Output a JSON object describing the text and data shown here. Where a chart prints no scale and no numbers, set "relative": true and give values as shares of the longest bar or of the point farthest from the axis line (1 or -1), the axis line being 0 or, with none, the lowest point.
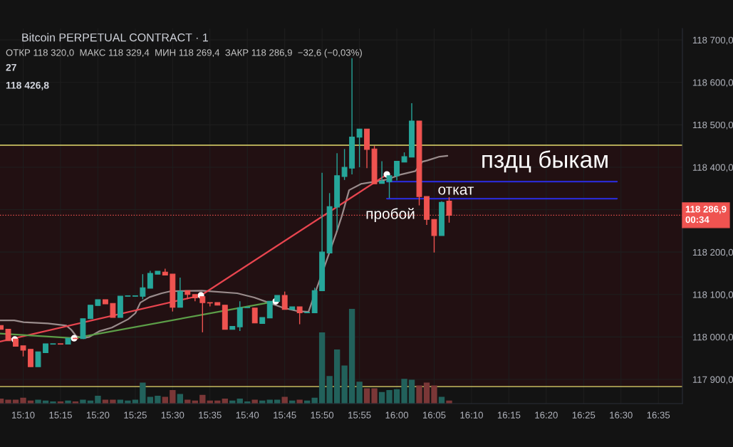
{
  "chart_data": [
    {
      "type": "candlestick",
      "title": "Bitcoin PERPETUAL CONTRACT · 1",
      "subtitle": "ОТКР 118 320,0  МАКС 118 329,4  МИН 118 269,4  ЗАКР 118 286,9  −32,6 (−0,03%)",
      "annotations": [
        "27",
        "118 426,8",
        "пздц быкам",
        "откат",
        "пробой"
      ],
      "x": [
        15.1167,
        15.1333,
        15.15,
        15.1667,
        15.1833,
        15.2,
        15.2167,
        15.2333,
        15.25,
        15.2667,
        15.2833,
        15.3,
        15.3167,
        15.3333,
        15.35,
        15.3667,
        15.3833,
        15.4,
        15.4167,
        15.4333,
        15.45,
        15.4667,
        15.4833,
        15.5,
        15.5167,
        15.5333,
        15.55,
        15.5667,
        15.5833,
        15.6,
        15.6167,
        15.6333,
        15.65,
        15.6667,
        15.6833,
        15.7,
        15.7167,
        15.7333,
        15.75,
        15.7667,
        15.7833,
        15.8,
        15.8167,
        15.8333,
        15.85,
        15.8667,
        15.8833,
        15.9,
        15.9167,
        15.9333,
        15.95,
        15.9667,
        15.9833,
        16.0,
        16.0167,
        16.0333,
        16.05,
        16.0667,
        16.0833,
        16.1,
        16.1167
      ],
      "ohlc": [
        [
          118027,
          118027,
          118018,
          118018
        ],
        [
          118018,
          118018,
          117991,
          117991
        ],
        [
          117995,
          117995,
          117978,
          117978
        ],
        [
          117979,
          117979,
          117954,
          117969
        ],
        [
          117971,
          117971,
          117930,
          117930
        ],
        [
          117930,
          117965,
          117930,
          117965
        ],
        [
          117963,
          117984,
          117963,
          117984
        ],
        [
          117983,
          117984,
          117983,
          117984
        ],
        [
          117984,
          117984,
          117983,
          117983
        ],
        [
          117983,
          117997,
          117983,
          117997
        ],
        [
          117997,
          117998,
          117996,
          117996
        ],
        [
          117996,
          118043,
          117996,
          118043
        ],
        [
          118043,
          118075,
          118043,
          118075
        ],
        [
          118074,
          118088,
          118074,
          118088
        ],
        [
          118088,
          118088,
          118078,
          118078
        ],
        [
          118079,
          118079,
          118046,
          118046
        ],
        [
          118046,
          118096,
          118046,
          118096
        ],
        [
          118096,
          118097,
          118096,
          118097
        ],
        [
          118096,
          118097,
          118096,
          118097
        ],
        [
          118096,
          118148,
          118089,
          118116
        ],
        [
          118115,
          118156,
          118115,
          118150
        ],
        [
          118148,
          118155,
          118148,
          118155
        ],
        [
          118153,
          118161,
          118146,
          118146
        ],
        [
          118148,
          118148,
          118060,
          118070
        ],
        [
          118070,
          118140,
          118070,
          118107
        ],
        [
          118109,
          118109,
          118089,
          118100
        ],
        [
          118100,
          118100,
          118084,
          118092
        ],
        [
          118095,
          118095,
          118011,
          118081
        ],
        [
          118081,
          118081,
          118072,
          118080
        ],
        [
          118081,
          118081,
          118075,
          118075
        ],
        [
          118075,
          118075,
          118018,
          118018
        ],
        [
          118018,
          118025,
          118018,
          118025
        ],
        [
          118024,
          118084,
          118014,
          118069
        ],
        [
          118069,
          118070,
          118069,
          118070
        ],
        [
          118068,
          118068,
          118033,
          118033
        ],
        [
          118032,
          118046,
          118032,
          118046
        ],
        [
          118045,
          118084,
          118045,
          118084
        ],
        [
          118084,
          118098,
          118084,
          118098
        ],
        [
          118098,
          118107,
          118065,
          118065
        ],
        [
          118065,
          118071,
          118065,
          118071
        ],
        [
          118071,
          118071,
          118030,
          118057
        ],
        [
          118057,
          118058,
          118057,
          118058
        ],
        [
          118057,
          118116,
          118057,
          118109
        ],
        [
          118109,
          118387,
          118109,
          118200
        ],
        [
          118198,
          118339,
          118198,
          118307
        ],
        [
          118306,
          118433,
          118251,
          118380
        ],
        [
          118378,
          118443,
          118370,
          118400
        ],
        [
          118398,
          118657,
          118383,
          118471
        ],
        [
          118471,
          118490,
          118400,
          118490
        ],
        [
          118490,
          118490,
          118398,
          118442
        ],
        [
          118443,
          118450,
          118361,
          118361
        ],
        [
          118362,
          118414,
          118362,
          118367
        ],
        [
          118366,
          118380,
          118327,
          118380
        ],
        [
          118380,
          118414,
          118369,
          118414
        ],
        [
          118412,
          118435,
          118412,
          118425
        ],
        [
          118424,
          118551,
          118424,
          118509
        ],
        [
          118509,
          118509,
          118310,
          118331
        ],
        [
          118331,
          118331,
          118264,
          118277
        ],
        [
          118277,
          118277,
          118199,
          118239
        ],
        [
          118239,
          118320,
          118239,
          118317
        ],
        [
          118320.0,
          118329.4,
          118269.4,
          118286.9
        ]
      ],
      "colors": [
        "#ef5350",
        "#ef5350",
        "#ef5350",
        "#ef5350",
        "#ef5350",
        "#26a69a",
        "#26a69a",
        "#26a69a",
        "#ef5350",
        "#26a69a",
        "#ef5350",
        "#26a69a",
        "#26a69a",
        "#26a69a",
        "#ef5350",
        "#ef5350",
        "#26a69a",
        "#26a69a",
        "#26a69a",
        "#26a69a",
        "#26a69a",
        "#26a69a",
        "#ef5350",
        "#ef5350",
        "#26a69a",
        "#ef5350",
        "#ef5350",
        "#ef5350",
        "#ef5350",
        "#ef5350",
        "#ef5350",
        "#26a69a",
        "#26a69a",
        "#26a69a",
        "#ef5350",
        "#26a69a",
        "#26a69a",
        "#26a69a",
        "#ef5350",
        "#26a69a",
        "#ef5350",
        "#26a69a",
        "#26a69a",
        "#26a69a",
        "#26a69a",
        "#26a69a",
        "#26a69a",
        "#26a69a",
        "#26a69a",
        "#ef5350",
        "#ef5350",
        "#26a69a",
        "#26a69a",
        "#26a69a",
        "#26a69a",
        "#26a69a",
        "#ef5350",
        "#ef5350",
        "#ef5350",
        "#26a69a",
        "#ef5350"
      ],
      "series": [
        {
          "type": "line",
          "color": "#9a8c8c",
          "x": [
            15.115,
            15.1468,
            15.1675,
            15.2215,
            15.2628,
            15.2739,
            15.285,
            15.3009,
            15.3136,
            15.3375,
            15.3645,
            15.401,
            15.4169,
            15.428,
            15.4487,
            15.4757,
            15.4964,
            15.5647,
            15.6441,
            15.6822,
            15.714,
            15.7458,
            15.7776,
            15.803,
            15.865,
            15.8777,
            15.8936,
            15.9206,
            15.9523,
            15.9778,
            16.0095,
            16.0413,
            16.0572,
            16.0683,
            16.0953,
            16.1128
          ],
          "values": [
            118039,
            118039,
            118035,
            118032,
            118027,
            118017,
            118002,
            117997,
            118000,
            118014,
            118022,
            118042,
            118056,
            118081,
            118094,
            118103,
            118108,
            118109,
            118103,
            118093,
            118081,
            118069,
            118061,
            118059,
            118245,
            118286,
            118346,
            118361,
            118366,
            118371,
            118383,
            118391,
            118413,
            118416,
            118425,
            118427
          ]
        },
        {
          "type": "line",
          "color": "#e8454f",
          "x": [
            15.115,
            15.5631,
            15.9778
          ],
          "values": [
            117989,
            118098,
            118383
          ]
        },
        {
          "type": "line",
          "color": "#5c9e48",
          "x": [
            15.115,
            15.2803,
            15.7299
          ],
          "values": [
            118008,
            117997,
            118084
          ]
        },
        {
          "type": "line",
          "color": "#2a2ad0",
          "x": [
            15.9778,
            16.491
          ],
          "values": [
            118366,
            118366
          ]
        },
        {
          "type": "line",
          "color": "#2a2ad0",
          "x": [
            15.9778,
            16.491
          ],
          "values": [
            118326,
            118326
          ]
        },
        {
          "type": "scatter",
          "color": "#ffffff",
          "marker": "circle",
          "x": [
            15.1479,
            15.2803,
            15.5631,
            15.7299,
            15.9778
          ],
          "values": [
            117994,
            117997,
            118098,
            118084,
            118383
          ]
        }
      ],
      "xlim": [
        15.115,
        16.637
      ],
      "xticks": [
        {
          "value": 15.1667,
          "label": "15:10"
        },
        {
          "value": 15.25,
          "label": "15:15"
        },
        {
          "value": 15.3333,
          "label": "15:20"
        },
        {
          "value": 15.4167,
          "label": "15:25"
        },
        {
          "value": 15.5,
          "label": "15:30"
        },
        {
          "value": 15.5833,
          "label": "15:35"
        },
        {
          "value": 15.6667,
          "label": "15:40"
        },
        {
          "value": 15.75,
          "label": "15:45"
        },
        {
          "value": 15.8333,
          "label": "15:50"
        },
        {
          "value": 15.9167,
          "label": "15:55"
        },
        {
          "value": 16.0,
          "label": "16:00"
        },
        {
          "value": 16.0833,
          "label": "16:05"
        },
        {
          "value": 16.1667,
          "label": "16:10"
        },
        {
          "value": 16.25,
          "label": "16:15"
        },
        {
          "value": 16.3333,
          "label": "16:20"
        },
        {
          "value": 16.4167,
          "label": "16:25"
        },
        {
          "value": 16.5,
          "label": "16:30"
        },
        {
          "value": 16.5833,
          "label": "16:35"
        }
      ],
      "ylim": [
        117843,
        118727
      ],
      "yticks": [
        {
          "value": 117900,
          "label": "117 900,0"
        },
        {
          "value": 118000,
          "label": "118 000,0"
        },
        {
          "value": 118100,
          "label": "118 100,0"
        },
        {
          "value": 118200,
          "label": "118 200,0"
        },
        {
          "value": 118300,
          "label": null
        },
        {
          "value": 118400,
          "label": "118 400,0"
        },
        {
          "value": 118500,
          "label": "118 500,0"
        },
        {
          "value": 118600,
          "label": "118 600,0"
        },
        {
          "value": 118700,
          "label": "118 700,0"
        }
      ],
      "ref_lines": [
        {
          "axis": "y",
          "value": 118452,
          "color": "#e6dc6e"
        },
        {
          "axis": "y",
          "value": 117883,
          "color": "#e6dc6e"
        },
        {
          "axis": "y",
          "value": 118286.9,
          "color": "#ef5350",
          "line_style": "dotted",
          "label": "118 286,9\n00:34"
        }
      ],
      "bands": [
        {
          "axis": "y",
          "from": 117883,
          "to": 118452,
          "color": "#221012"
        }
      ],
      "grid": true
    },
    {
      "type": "bar",
      "relative": true,
      "tick_labels": false,
      "x": [
        15.1167,
        15.1333,
        15.15,
        15.1667,
        15.1833,
        15.2,
        15.2167,
        15.2333,
        15.25,
        15.2667,
        15.2833,
        15.3,
        15.3167,
        15.3333,
        15.35,
        15.3667,
        15.3833,
        15.4,
        15.4167,
        15.4333,
        15.45,
        15.4667,
        15.4833,
        15.5,
        15.5167,
        15.5333,
        15.55,
        15.5667,
        15.5833,
        15.6,
        15.6167,
        15.6333,
        15.65,
        15.6667,
        15.6833,
        15.7,
        15.7167,
        15.7333,
        15.75,
        15.7667,
        15.7833,
        15.8,
        15.8167,
        15.8333,
        15.85,
        15.8667,
        15.8833,
        15.9,
        15.9167,
        15.9333,
        15.95,
        15.9667,
        15.9833,
        16.0,
        16.0167,
        16.0333,
        16.05,
        16.0667,
        16.0833,
        16.1,
        16.1167
      ],
      "values": [
        0.05,
        0.04,
        0.04,
        0.06,
        0.03,
        0.04,
        0.03,
        0.02,
        0.02,
        0.03,
        0.02,
        0.04,
        0.03,
        0.08,
        0.04,
        0.04,
        0.04,
        0.03,
        0.04,
        0.22,
        0.07,
        0.08,
        0.07,
        0.14,
        0.1,
        0.04,
        0.03,
        0.09,
        0.03,
        0.03,
        0.05,
        0.03,
        0.05,
        0.02,
        0.04,
        0.03,
        0.04,
        0.04,
        0.07,
        0.03,
        0.04,
        0.03,
        0.06,
        0.75,
        0.29,
        0.57,
        0.4,
        1,
        0.23,
        0.16,
        0.16,
        0.12,
        0.14,
        0.15,
        0.26,
        0.25,
        0.19,
        0.22,
        0.19,
        0.07,
        0.03
      ],
      "colors": [
        "#7a3737",
        "#7a3737",
        "#7a3737",
        "#7a3737",
        "#7a3737",
        "#22615b",
        "#22615b",
        "#22615b",
        "#7a3737",
        "#22615b",
        "#7a3737",
        "#22615b",
        "#22615b",
        "#22615b",
        "#7a3737",
        "#7a3737",
        "#22615b",
        "#22615b",
        "#22615b",
        "#22615b",
        "#22615b",
        "#22615b",
        "#7a3737",
        "#7a3737",
        "#22615b",
        "#7a3737",
        "#7a3737",
        "#7a3737",
        "#7a3737",
        "#7a3737",
        "#7a3737",
        "#22615b",
        "#22615b",
        "#22615b",
        "#7a3737",
        "#22615b",
        "#22615b",
        "#22615b",
        "#7a3737",
        "#22615b",
        "#7a3737",
        "#22615b",
        "#22615b",
        "#22615b",
        "#22615b",
        "#22615b",
        "#22615b",
        "#22615b",
        "#22615b",
        "#7a3737",
        "#7a3737",
        "#22615b",
        "#22615b",
        "#22615b",
        "#22615b",
        "#22615b",
        "#7a3737",
        "#7a3737",
        "#7a3737",
        "#22615b",
        "#7a3737"
      ],
      "xlim": [
        15.115,
        16.637
      ]
    }
  ]
}
